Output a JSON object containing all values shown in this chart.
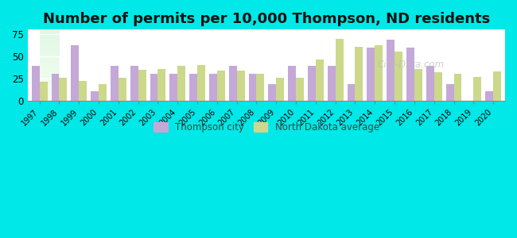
{
  "title": "Number of permits per 10,000 Thompson, ND residents",
  "years": [
    1997,
    1998,
    1999,
    2000,
    2001,
    2002,
    2003,
    2004,
    2005,
    2006,
    2007,
    2008,
    2009,
    2010,
    2011,
    2012,
    2013,
    2014,
    2015,
    2016,
    2017,
    2018,
    2019,
    2020
  ],
  "thompson": [
    39,
    30,
    62,
    11,
    39,
    39,
    30,
    30,
    30,
    30,
    39,
    30,
    19,
    39,
    39,
    39,
    19,
    60,
    69,
    60,
    39,
    19,
    0,
    11
  ],
  "nd_avg": [
    21,
    26,
    22,
    19,
    26,
    35,
    36,
    39,
    40,
    34,
    34,
    30,
    26,
    26,
    46,
    70,
    61,
    62,
    55,
    36,
    32,
    30,
    27,
    33
  ],
  "thompson_color": "#c4a8d8",
  "nd_avg_color": "#ccd88a",
  "bg_outer": "#00e8e8",
  "ylim": [
    0,
    80
  ],
  "yticks": [
    0,
    25,
    50,
    75
  ],
  "title_fontsize": 13,
  "legend_thompson": "Thompson city",
  "legend_nd": "North Dakota average",
  "bar_width": 0.4,
  "watermark": "City-Data.com"
}
